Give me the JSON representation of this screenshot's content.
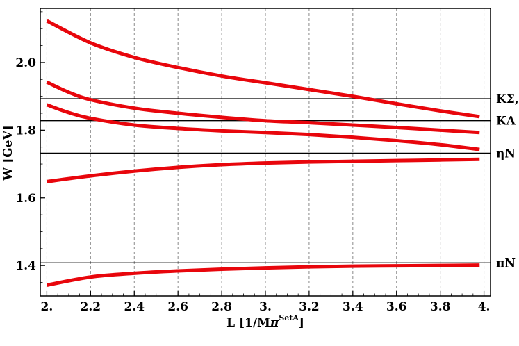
{
  "chart_data": {
    "type": "line",
    "title": "",
    "xlabel": "L [1/M",
    "xlabel_sub": "π",
    "xlabel_sup": "SetA",
    "xlabel_end": "]",
    "ylabel": "W [GeV]",
    "xlim": [
      1.97,
      4.03
    ],
    "ylim": [
      1.31,
      2.16
    ],
    "x_ticks": [
      2.0,
      2.2,
      2.4,
      2.6,
      2.8,
      3.0,
      3.2,
      3.4,
      3.6,
      3.8,
      4.0
    ],
    "x_tick_labels": [
      "2.",
      "2.2",
      "2.4",
      "2.6",
      "2.8",
      "3.",
      "3.2",
      "3.4",
      "3.6",
      "3.8",
      "4."
    ],
    "y_ticks": [
      1.4,
      1.6,
      1.8,
      2.0
    ],
    "y_tick_labels": [
      "1.4",
      "1.6",
      "1.8",
      "2.0"
    ],
    "grid": "vertical dashed",
    "line_color": "#e8060c",
    "thresholds": [
      {
        "label": "KΣ,",
        "value": 1.893
      },
      {
        "label": "KΛ",
        "value": 1.828
      },
      {
        "label": "ηN",
        "value": 1.732
      },
      {
        "label": "πN",
        "value": 1.408
      }
    ],
    "series": [
      {
        "x": [
          2.0,
          2.2,
          2.4,
          2.6,
          2.8,
          3.0,
          3.2,
          3.4,
          3.6,
          3.8,
          3.98
        ],
        "y": [
          2.123,
          2.058,
          2.015,
          1.985,
          1.96,
          1.94,
          1.92,
          1.9,
          1.878,
          1.857,
          1.84
        ]
      },
      {
        "x": [
          2.0,
          2.1,
          2.2,
          2.4,
          2.6,
          2.8,
          3.0,
          3.2,
          3.4,
          3.6,
          3.8,
          3.98
        ],
        "y": [
          1.942,
          1.912,
          1.89,
          1.865,
          1.85,
          1.838,
          1.828,
          1.822,
          1.815,
          1.808,
          1.8,
          1.793
        ]
      },
      {
        "x": [
          2.0,
          2.1,
          2.2,
          2.4,
          2.6,
          2.8,
          3.0,
          3.2,
          3.4,
          3.6,
          3.8,
          3.98
        ],
        "y": [
          1.875,
          1.852,
          1.835,
          1.815,
          1.805,
          1.798,
          1.793,
          1.787,
          1.779,
          1.769,
          1.757,
          1.743
        ]
      },
      {
        "x": [
          2.0,
          2.2,
          2.4,
          2.6,
          2.8,
          3.0,
          3.2,
          3.4,
          3.6,
          3.8,
          3.98
        ],
        "y": [
          1.648,
          1.665,
          1.679,
          1.69,
          1.698,
          1.703,
          1.706,
          1.708,
          1.71,
          1.712,
          1.714
        ]
      },
      {
        "x": [
          2.0,
          2.2,
          2.4,
          2.6,
          2.8,
          3.0,
          3.2,
          3.4,
          3.6,
          3.8,
          3.98
        ],
        "y": [
          1.342,
          1.366,
          1.377,
          1.384,
          1.389,
          1.393,
          1.396,
          1.398,
          1.399,
          1.4,
          1.401
        ]
      }
    ]
  }
}
